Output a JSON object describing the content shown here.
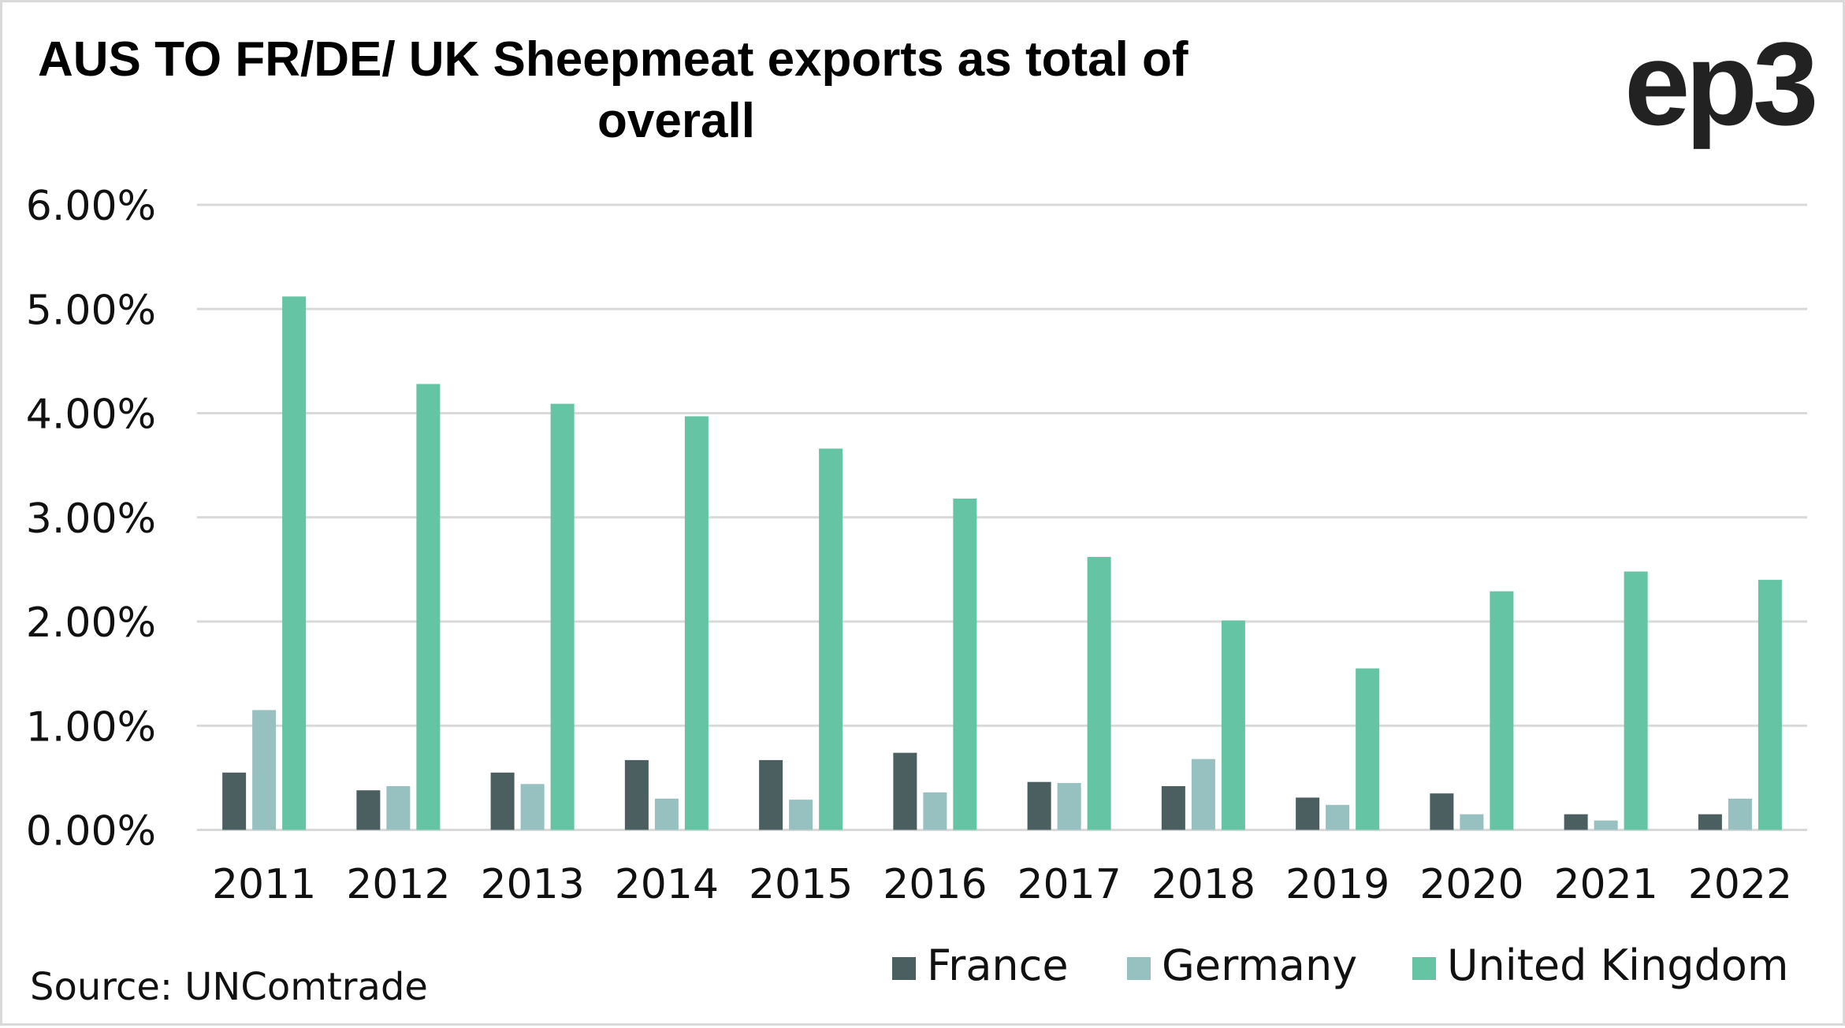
{
  "chart_data": {
    "type": "bar",
    "title": "AUS TO FR/DE/ UK Sheepmeat exports as total of overall",
    "title_lines": [
      "AUS TO FR/DE/ UK Sheepmeat exports as total of",
      "overall"
    ],
    "xlabel": "",
    "ylabel": "",
    "ylim": [
      0,
      6
    ],
    "y_unit": "%",
    "y_ticks": [
      0,
      1,
      2,
      3,
      4,
      5,
      6
    ],
    "y_tick_labels": [
      "0.00%",
      "1.00%",
      "2.00%",
      "3.00%",
      "4.00%",
      "5.00%",
      "6.00%"
    ],
    "grid": true,
    "legend_position": "bottom-right",
    "categories": [
      "2011",
      "2012",
      "2013",
      "2014",
      "2015",
      "2016",
      "2017",
      "2018",
      "2019",
      "2020",
      "2021",
      "2022"
    ],
    "series": [
      {
        "name": "France",
        "color": "#4B5F60",
        "values": [
          0.55,
          0.38,
          0.55,
          0.67,
          0.67,
          0.74,
          0.46,
          0.42,
          0.31,
          0.35,
          0.15,
          0.15
        ]
      },
      {
        "name": "Germany",
        "color": "#97C1C0",
        "values": [
          1.15,
          0.42,
          0.44,
          0.3,
          0.29,
          0.36,
          0.45,
          0.68,
          0.24,
          0.15,
          0.09,
          0.3
        ]
      },
      {
        "name": "United Kingdom",
        "color": "#64C4A4",
        "values": [
          5.12,
          4.28,
          4.09,
          3.97,
          3.66,
          3.18,
          2.62,
          2.01,
          1.55,
          2.29,
          2.48,
          2.4
        ]
      }
    ]
  },
  "header": {
    "title_line1": "AUS TO FR/DE/ UK Sheepmeat exports as total of",
    "title_line2": "overall",
    "logo_text": "ep3"
  },
  "footer": {
    "source": "Source: UNComtrade"
  },
  "colors": {
    "gridline": "#D9D9D9",
    "text": "#111111"
  }
}
